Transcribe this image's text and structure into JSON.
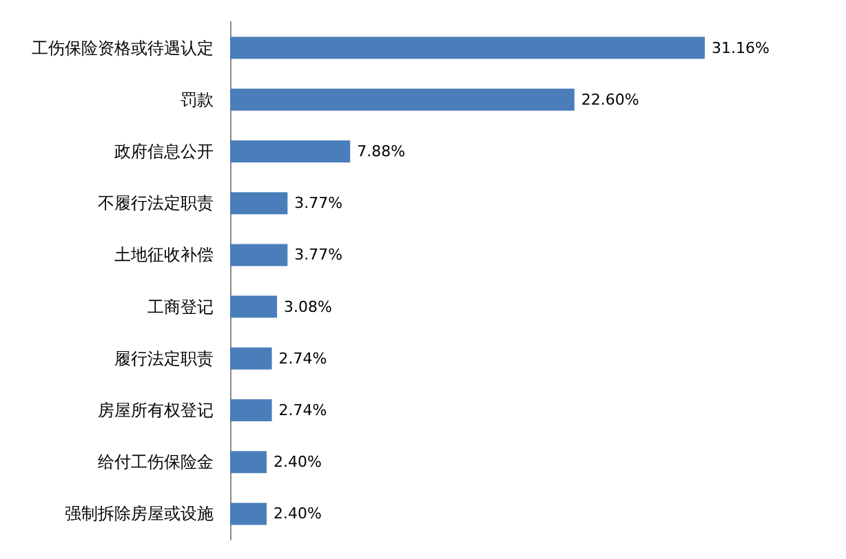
{
  "chart_data": {
    "type": "bar",
    "orientation": "horizontal",
    "categories": [
      "工伤保险资格或待遇认定",
      "罚款",
      "政府信息公开",
      "不履行法定职责",
      "土地征收补偿",
      "工商登记",
      "履行法定职责",
      "房屋所有权登记",
      "给付工伤保险金",
      "强制拆除房屋或设施"
    ],
    "values": [
      31.16,
      22.6,
      7.88,
      3.77,
      3.77,
      3.08,
      2.74,
      2.74,
      2.4,
      2.4
    ],
    "value_labels": [
      "31.16%",
      "22.60%",
      "7.88%",
      "3.77%",
      "3.77%",
      "3.08%",
      "2.74%",
      "2.74%",
      "2.40%",
      "2.40%"
    ],
    "color": "#4a7ebb"
  }
}
